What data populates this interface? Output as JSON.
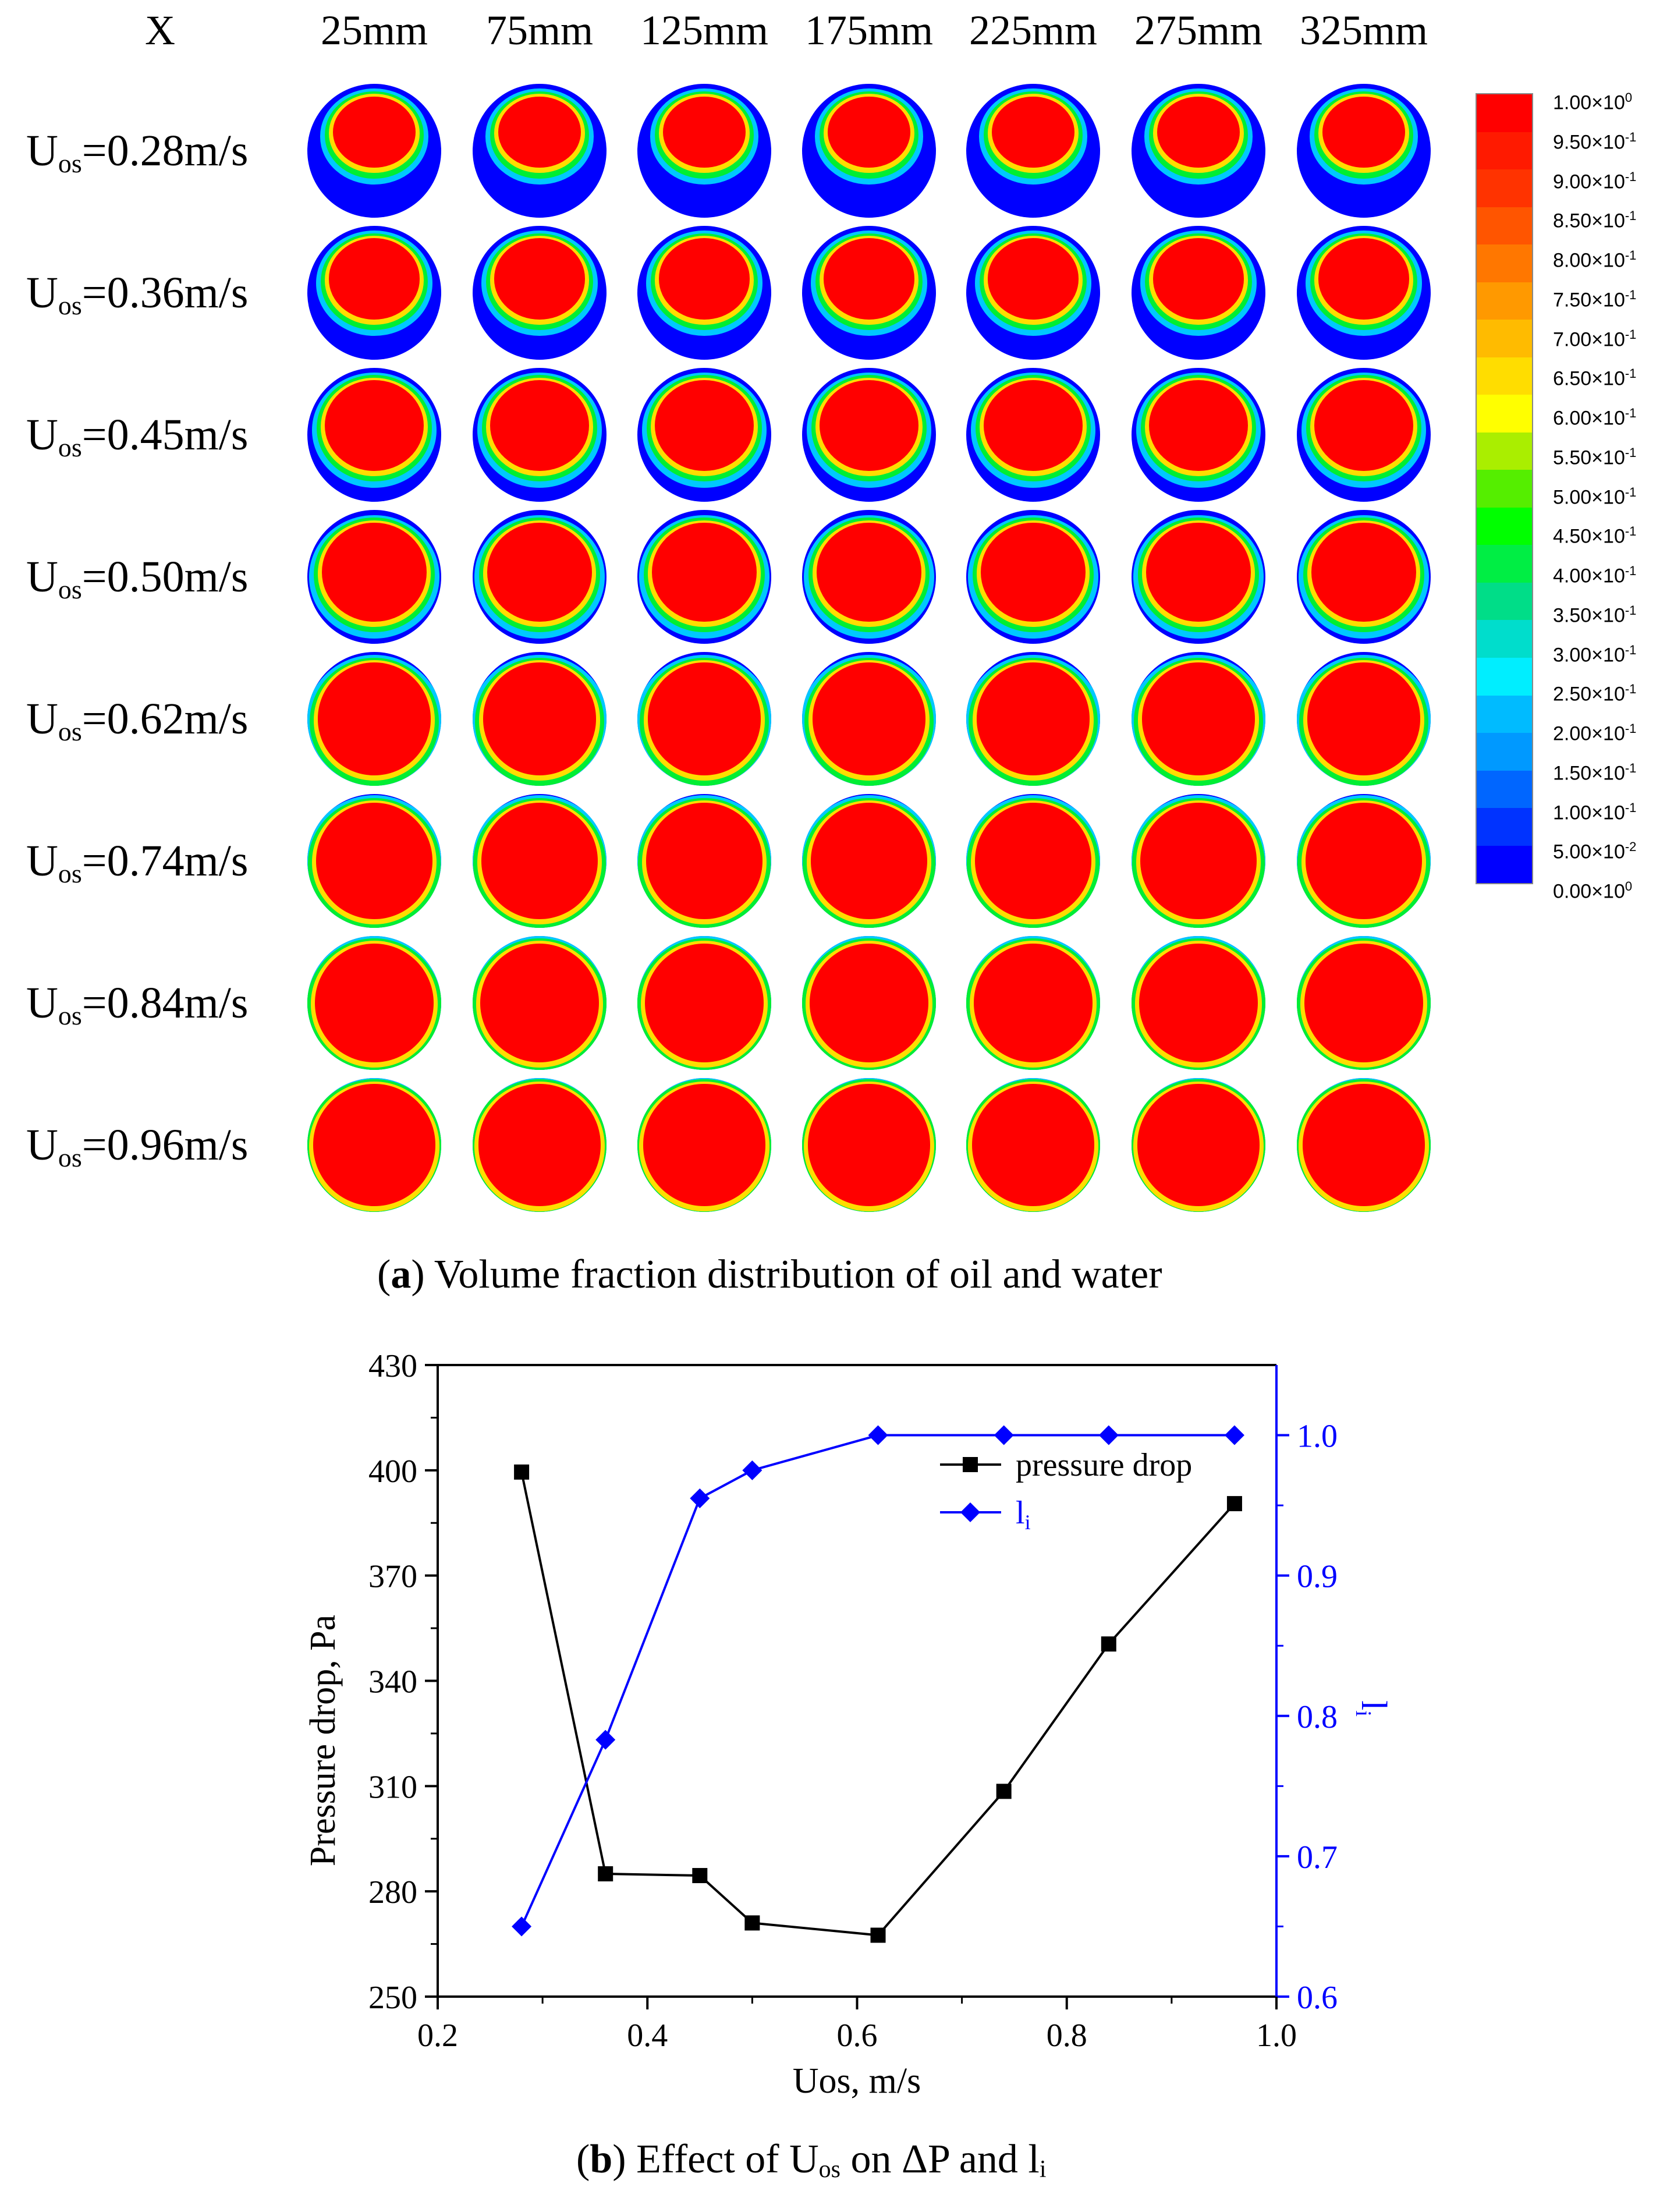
{
  "panel_a": {
    "corner_label": "X",
    "columns": [
      "25mm",
      "75mm",
      "125mm",
      "175mm",
      "225mm",
      "275mm",
      "325mm"
    ],
    "rows": [
      {
        "label_main": "U",
        "label_sub": "os",
        "label_value": "=0.28m/s",
        "oil_fraction_level": 0.62
      },
      {
        "label_main": "U",
        "label_sub": "os",
        "label_value": "=0.36m/s",
        "oil_fraction_level": 0.68
      },
      {
        "label_main": "U",
        "label_sub": "os",
        "label_value": "=0.45m/s",
        "oil_fraction_level": 0.74
      },
      {
        "label_main": "U",
        "label_sub": "os",
        "label_value": "=0.50m/s",
        "oil_fraction_level": 0.78
      },
      {
        "label_main": "U",
        "label_sub": "os",
        "label_value": "=0.62m/s",
        "oil_fraction_level": 0.84
      },
      {
        "label_main": "U",
        "label_sub": "os",
        "label_value": "=0.74m/s",
        "oil_fraction_level": 0.87
      },
      {
        "label_main": "U",
        "label_sub": "os",
        "label_value": "=0.84m/s",
        "oil_fraction_level": 0.89
      },
      {
        "label_main": "U",
        "label_sub": "os",
        "label_value": "=0.96m/s",
        "oil_fraction_level": 0.91
      }
    ],
    "colorbar": {
      "ticks": [
        {
          "mant": "1.00×10",
          "exp": "0"
        },
        {
          "mant": "9.50×10",
          "exp": "-1"
        },
        {
          "mant": "9.00×10",
          "exp": "-1"
        },
        {
          "mant": "8.50×10",
          "exp": "-1"
        },
        {
          "mant": "8.00×10",
          "exp": "-1"
        },
        {
          "mant": "7.50×10",
          "exp": "-1"
        },
        {
          "mant": "7.00×10",
          "exp": "-1"
        },
        {
          "mant": "6.50×10",
          "exp": "-1"
        },
        {
          "mant": "6.00×10",
          "exp": "-1"
        },
        {
          "mant": "5.50×10",
          "exp": "-1"
        },
        {
          "mant": "5.00×10",
          "exp": "-1"
        },
        {
          "mant": "4.50×10",
          "exp": "-1"
        },
        {
          "mant": "4.00×10",
          "exp": "-1"
        },
        {
          "mant": "3.50×10",
          "exp": "-1"
        },
        {
          "mant": "3.00×10",
          "exp": "-1"
        },
        {
          "mant": "2.50×10",
          "exp": "-1"
        },
        {
          "mant": "2.00×10",
          "exp": "-1"
        },
        {
          "mant": "1.50×10",
          "exp": "-1"
        },
        {
          "mant": "1.00×10",
          "exp": "-1"
        },
        {
          "mant": "5.00×10",
          "exp": "-2"
        },
        {
          "mant": "0.00×10",
          "exp": "0"
        }
      ],
      "colors": [
        "#ff0000",
        "#ff1a00",
        "#ff3300",
        "#ff5500",
        "#ff7700",
        "#ff9900",
        "#ffbb00",
        "#ffdd00",
        "#ffff00",
        "#aaee00",
        "#55ee00",
        "#00ff00",
        "#00ee44",
        "#00dd88",
        "#00ddcc",
        "#00eeff",
        "#00bbff",
        "#0099ff",
        "#0066ff",
        "#0033ff",
        "#0000ff"
      ]
    },
    "caption": {
      "letter": "a",
      "text": " Volume fraction distribution of oil and water"
    }
  },
  "chart_data": {
    "type": "line",
    "xlabel": "Uos, m/s",
    "ylabel": "Pressure drop, Pa",
    "y2label": "li",
    "xlim": [
      0.2,
      1.0
    ],
    "ylim": [
      250,
      430
    ],
    "y2lim": [
      0.6,
      1.05
    ],
    "xticks": [
      "0.2",
      "0.4",
      "0.6",
      "0.8",
      "1.0"
    ],
    "xtick_values": [
      0.2,
      0.4,
      0.6,
      0.8,
      1.0
    ],
    "yticks": [
      "250",
      "280",
      "310",
      "340",
      "370",
      "400",
      "430"
    ],
    "ytick_values": [
      250,
      280,
      310,
      340,
      370,
      400,
      430
    ],
    "y2ticks": [
      "0.6",
      "0.7",
      "0.8",
      "0.9",
      "1.0"
    ],
    "y2tick_values": [
      0.6,
      0.7,
      0.8,
      0.9,
      1.0
    ],
    "x": [
      0.28,
      0.36,
      0.45,
      0.5,
      0.62,
      0.74,
      0.84,
      0.96
    ],
    "series": [
      {
        "name": "pressure drop",
        "axis": "left",
        "marker": "square",
        "color": "#000000",
        "values": [
          399.5,
          285,
          284.5,
          271,
          267.5,
          308.5,
          350.5,
          390.5
        ]
      },
      {
        "name": "li",
        "name_main": "l",
        "name_sub": "i",
        "axis": "right",
        "marker": "diamond",
        "color": "#0000ff",
        "values": [
          0.65,
          0.783,
          0.955,
          0.975,
          1.0,
          1.0,
          1.0,
          1.0
        ]
      }
    ],
    "legend_position": "top-right",
    "grid": false
  },
  "panel_b_caption": {
    "letter": "b",
    "t1": " Effect of U",
    "sub1": "os",
    "t2": " on ΔP and l",
    "sub2": "i"
  }
}
